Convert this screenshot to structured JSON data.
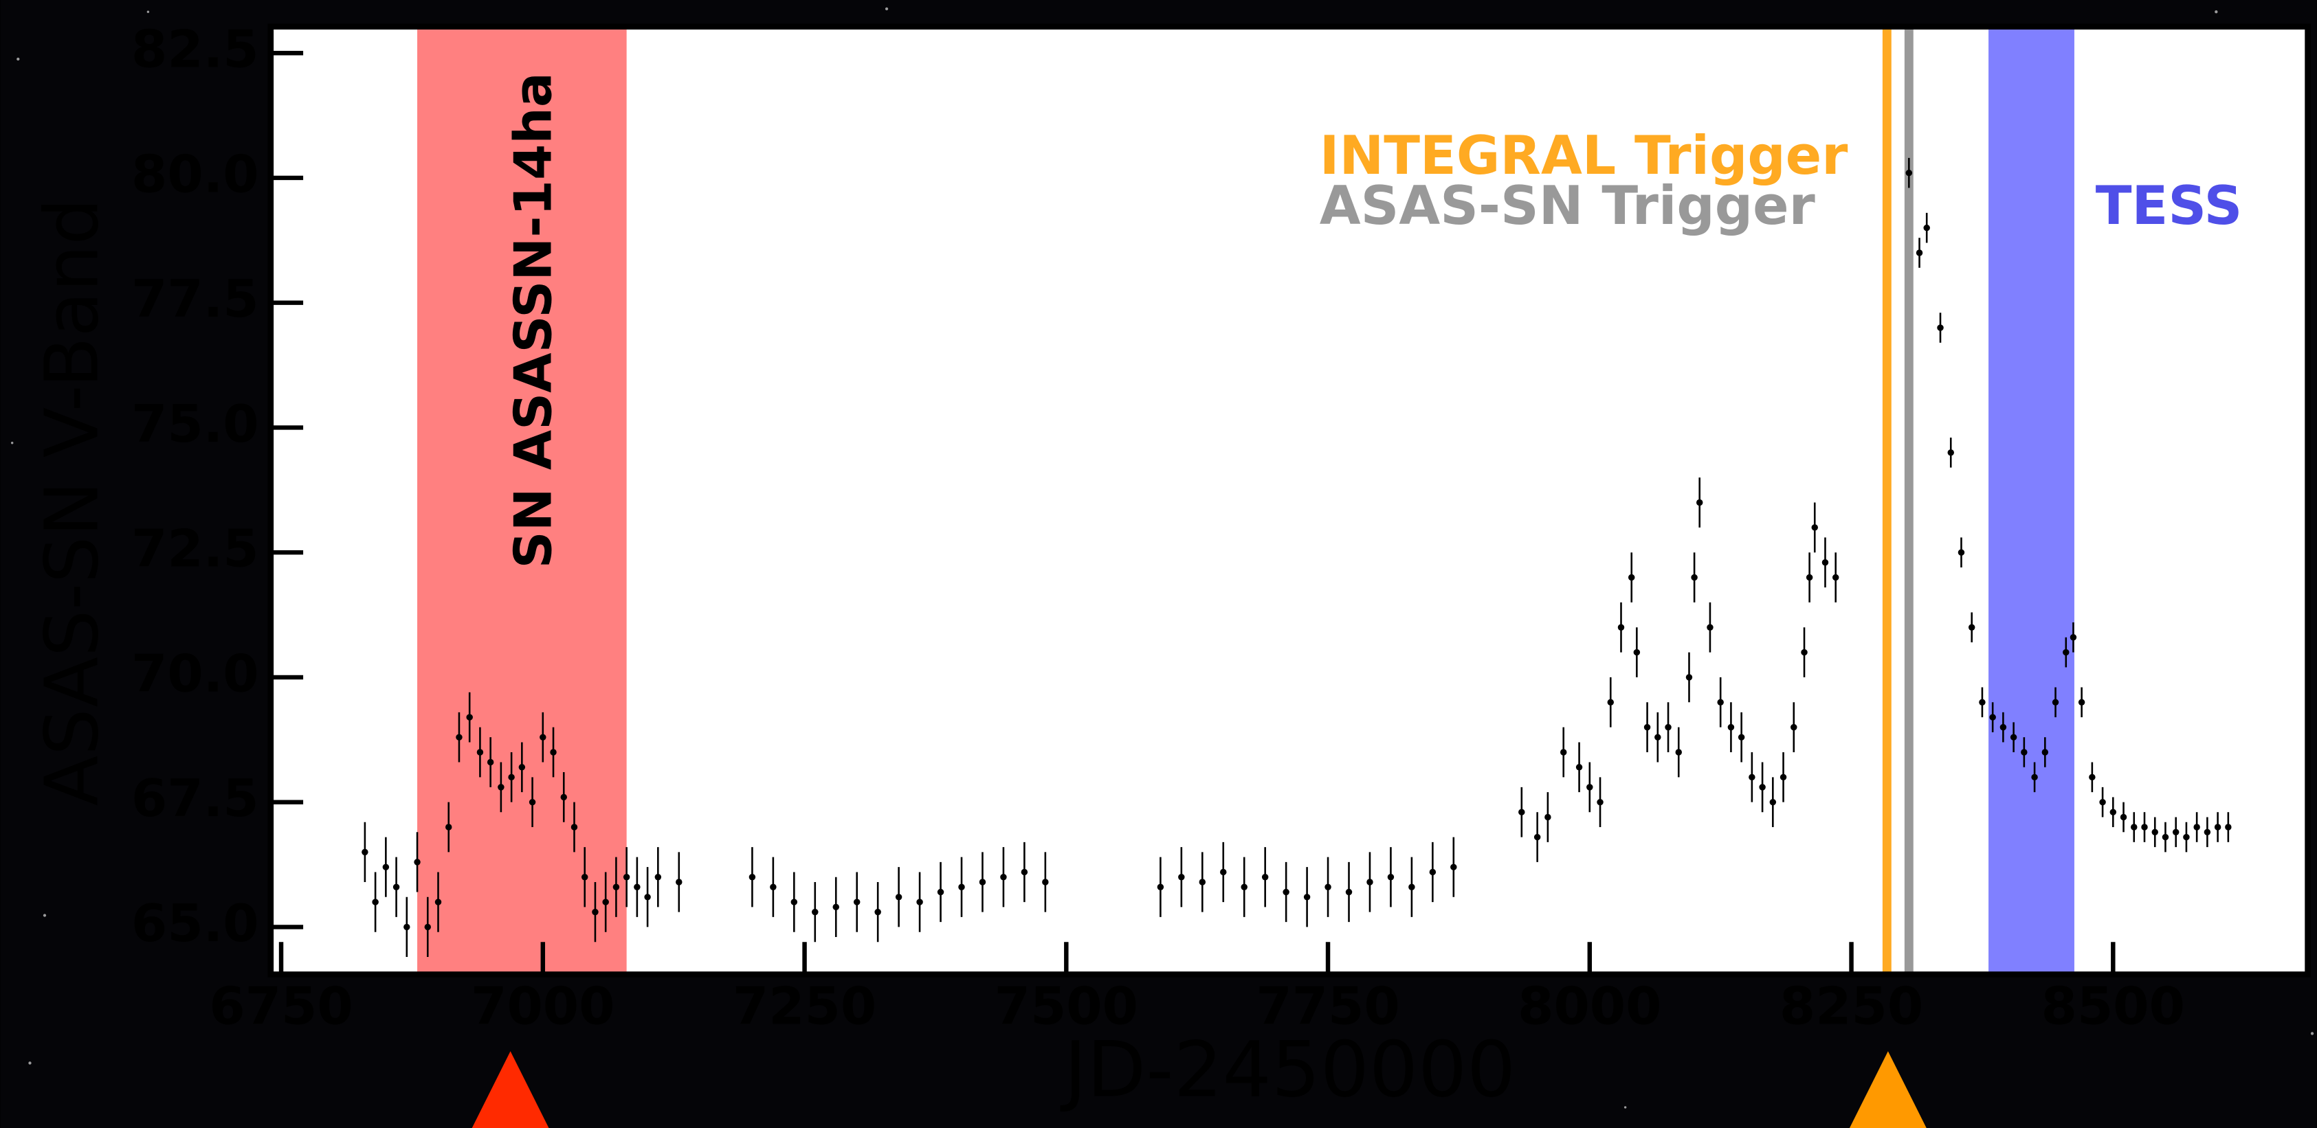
{
  "chart_data": {
    "type": "scatter",
    "x_label": "JD-2450000",
    "y_label": "ASAS-SN V-Band",
    "xlim": [
      6740,
      8686
    ],
    "ylim": [
      64.05,
      83.03
    ],
    "xticks": [
      6750,
      7000,
      7250,
      7500,
      7750,
      8000,
      8250,
      8500
    ],
    "yticks": [
      {
        "value": 65,
        "label": "65.0"
      },
      {
        "value": 67.5,
        "label": "67.5"
      },
      {
        "value": 70,
        "label": "70.0"
      },
      {
        "value": 72.5,
        "label": "72.5"
      },
      {
        "value": 75,
        "label": "75.0"
      },
      {
        "value": 77.5,
        "label": "77.5"
      },
      {
        "value": 80,
        "label": "80.0"
      },
      {
        "value": 82.5,
        "label": "82.5"
      }
    ],
    "spans": [
      {
        "start": 6880,
        "end": 7080,
        "color": "#ff8080",
        "label": "SN ASASSN-14ha"
      },
      {
        "start": 8381,
        "end": 8463,
        "color": "#8080ff",
        "label": "TESS"
      }
    ],
    "vlines": [
      {
        "x": 8284,
        "color": "#ffaa22",
        "label": "INTEGRAL Trigger"
      },
      {
        "x": 8305,
        "color": "#999999",
        "label": "ASAS-SN Trigger"
      }
    ],
    "markers": [
      {
        "x": 6969,
        "color": "#ff2a00"
      },
      {
        "x": 8285,
        "color": "#ff9900"
      }
    ],
    "series": [
      {
        "color": "#000000",
        "x": [
          6830,
          6840,
          6850,
          6860,
          6870,
          6880,
          6890,
          6900,
          6910,
          6920,
          6930,
          6940,
          6950,
          6960,
          6970,
          6980,
          6990,
          7000,
          7010,
          7020,
          7030,
          7040,
          7050,
          7060,
          7070,
          7080,
          7090,
          7100,
          7110,
          7130,
          7200,
          7220,
          7240,
          7260,
          7280,
          7300,
          7320,
          7340,
          7360,
          7380,
          7400,
          7420,
          7440,
          7460,
          7480,
          7590,
          7610,
          7630,
          7650,
          7670,
          7690,
          7710,
          7730,
          7750,
          7770,
          7790,
          7810,
          7830,
          7850,
          7870,
          7935,
          7950,
          7960,
          7975,
          7990,
          8000,
          8010,
          8020,
          8030,
          8040,
          8045,
          8055,
          8065,
          8075,
          8085,
          8095,
          8100,
          8105,
          8115,
          8125,
          8135,
          8145,
          8155,
          8165,
          8175,
          8185,
          8195,
          8205,
          8210,
          8215,
          8225,
          8235,
          8305,
          8315,
          8322,
          8335,
          8345,
          8355,
          8365,
          8375,
          8385,
          8395,
          8405,
          8415,
          8425,
          8435,
          8445,
          8455,
          8462,
          8470,
          8480,
          8490,
          8500,
          8510,
          8520,
          8530,
          8540,
          8550,
          8560,
          8570,
          8580,
          8590,
          8600,
          8610
        ],
        "values": [
          66.5,
          65.5,
          66.2,
          65.8,
          65.0,
          66.3,
          65.0,
          65.5,
          67.0,
          68.8,
          69.2,
          68.5,
          68.3,
          67.8,
          68.0,
          68.2,
          67.5,
          68.8,
          68.5,
          67.6,
          67.0,
          66.0,
          65.3,
          65.5,
          65.8,
          66.0,
          65.8,
          65.6,
          66.0,
          65.9,
          66.0,
          65.8,
          65.5,
          65.3,
          65.4,
          65.5,
          65.3,
          65.6,
          65.5,
          65.7,
          65.8,
          65.9,
          66.0,
          66.1,
          65.9,
          65.8,
          66.0,
          65.9,
          66.1,
          65.8,
          66.0,
          65.7,
          65.6,
          65.8,
          65.7,
          65.9,
          66.0,
          65.8,
          66.1,
          66.2,
          67.3,
          66.8,
          67.2,
          68.5,
          68.2,
          67.8,
          67.5,
          69.5,
          71.0,
          72.0,
          70.5,
          69.0,
          68.8,
          69.0,
          68.5,
          70.0,
          72.0,
          73.5,
          71.0,
          69.5,
          69.0,
          68.8,
          68.0,
          67.8,
          67.5,
          68.0,
          69.0,
          70.5,
          72.0,
          73.0,
          72.3,
          72.0,
          80.1,
          78.5,
          79.0,
          77.0,
          74.5,
          72.5,
          71.0,
          69.5,
          69.2,
          69.0,
          68.8,
          68.5,
          68.0,
          68.5,
          69.5,
          70.5,
          70.8,
          69.5,
          68.0,
          67.5,
          67.3,
          67.2,
          67.0,
          67.0,
          66.9,
          66.8,
          66.9,
          66.8,
          67.0,
          66.9,
          67.0,
          67.0
        ],
        "errors": [
          0.6,
          0.6,
          0.6,
          0.6,
          0.6,
          0.6,
          0.6,
          0.6,
          0.5,
          0.5,
          0.5,
          0.5,
          0.5,
          0.5,
          0.5,
          0.5,
          0.5,
          0.5,
          0.5,
          0.5,
          0.5,
          0.6,
          0.6,
          0.6,
          0.6,
          0.6,
          0.6,
          0.6,
          0.6,
          0.6,
          0.6,
          0.6,
          0.6,
          0.6,
          0.6,
          0.6,
          0.6,
          0.6,
          0.6,
          0.6,
          0.6,
          0.6,
          0.6,
          0.6,
          0.6,
          0.6,
          0.6,
          0.6,
          0.6,
          0.6,
          0.6,
          0.6,
          0.6,
          0.6,
          0.6,
          0.6,
          0.6,
          0.6,
          0.6,
          0.6,
          0.5,
          0.5,
          0.5,
          0.5,
          0.5,
          0.5,
          0.5,
          0.5,
          0.5,
          0.5,
          0.5,
          0.5,
          0.5,
          0.5,
          0.5,
          0.5,
          0.5,
          0.5,
          0.5,
          0.5,
          0.5,
          0.5,
          0.5,
          0.5,
          0.5,
          0.5,
          0.5,
          0.5,
          0.5,
          0.5,
          0.5,
          0.5,
          0.3,
          0.3,
          0.3,
          0.3,
          0.3,
          0.3,
          0.3,
          0.3,
          0.3,
          0.3,
          0.3,
          0.3,
          0.3,
          0.3,
          0.3,
          0.3,
          0.3,
          0.3,
          0.3,
          0.3,
          0.3,
          0.3,
          0.3,
          0.3,
          0.3,
          0.3,
          0.3,
          0.3,
          0.3,
          0.3,
          0.3,
          0.3
        ]
      }
    ]
  }
}
